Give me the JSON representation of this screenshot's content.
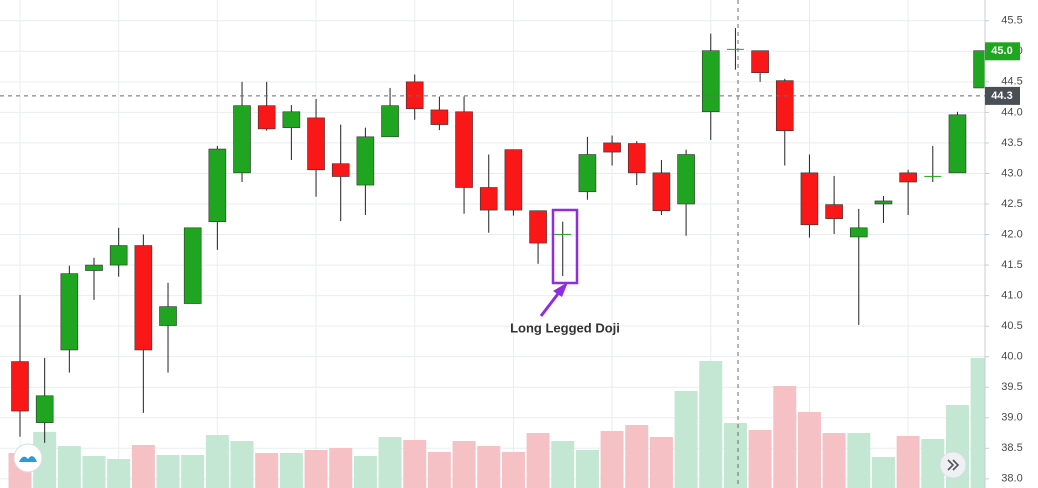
{
  "chart_data": {
    "type": "candlestick",
    "open": [
      39.92,
      38.92,
      40.11,
      41.41,
      41.5,
      41.82,
      40.51,
      40.87,
      42.21,
      43.01,
      44.11,
      43.75,
      43.91,
      43.16,
      42.81,
      43.6,
      44.5,
      44.04,
      44.01,
      42.77,
      43.39,
      42.39,
      42.01,
      42.7,
      43.5,
      43.49,
      43.01,
      42.5,
      44.01,
      45.04,
      45.01,
      44.52,
      43.01,
      42.49,
      41.96,
      42.5,
      43.01,
      42.96,
      43.01,
      44.4
    ],
    "high": [
      41.01,
      39.98,
      41.49,
      41.62,
      42.11,
      42.0,
      41.21,
      42.11,
      43.45,
      44.5,
      44.5,
      44.12,
      44.22,
      43.8,
      43.75,
      44.4,
      44.62,
      44.26,
      44.26,
      43.31,
      43.39,
      42.39,
      42.21,
      43.6,
      43.62,
      43.53,
      43.22,
      43.39,
      45.29,
      45.38,
      45.01,
      44.55,
      43.31,
      42.96,
      42.42,
      42.63,
      43.06,
      43.45,
      44.01,
      45.01
    ],
    "low": [
      38.69,
      38.59,
      39.74,
      40.93,
      41.31,
      39.08,
      39.74,
      40.87,
      41.75,
      42.86,
      43.7,
      43.22,
      42.62,
      42.22,
      42.32,
      43.6,
      43.88,
      43.71,
      42.34,
      42.03,
      42.31,
      41.52,
      41.32,
      42.57,
      43.13,
      42.81,
      42.32,
      41.98,
      43.55,
      44.7,
      44.5,
      43.13,
      41.95,
      42.01,
      40.52,
      42.19,
      42.32,
      42.86,
      43.01,
      44.4
    ],
    "close": [
      39.11,
      39.36,
      41.36,
      41.5,
      41.82,
      40.11,
      40.82,
      42.11,
      43.4,
      44.11,
      43.73,
      44.01,
      43.06,
      42.95,
      43.6,
      44.11,
      44.06,
      43.8,
      42.77,
      42.4,
      42.4,
      41.86,
      42.01,
      43.31,
      43.35,
      43.01,
      42.39,
      43.31,
      45.01,
      45.04,
      44.65,
      43.7,
      42.16,
      42.26,
      42.11,
      42.55,
      42.86,
      42.96,
      43.96,
      45.01
    ],
    "volume": [
      35,
      56,
      42,
      32,
      29,
      43,
      33,
      33,
      53,
      47,
      35,
      35,
      38,
      40,
      32,
      51,
      48,
      36,
      47,
      42,
      36,
      55,
      47,
      38,
      57,
      63,
      51,
      97,
      127,
      65,
      58,
      102,
      76,
      55,
      55,
      31,
      52,
      49,
      83,
      130
    ],
    "up_color": "#1fa51f",
    "down_color": "#f91717",
    "up_volume_color": "#c3e7d3",
    "down_volume_color": "#f6c1c5",
    "ylim": [
      37.85,
      45.84
    ],
    "yticks": [
      {
        "value": 38.0,
        "label": "38.0"
      },
      38.5,
      {
        "value": 39.0,
        "label": "39.0"
      },
      39.5,
      {
        "value": 40.0,
        "label": "40.0"
      },
      40.5,
      {
        "value": 41.0,
        "label": "41.0"
      },
      41.5,
      {
        "value": 42.0,
        "label": "42.0"
      },
      42.5,
      {
        "value": 43.0,
        "label": "43.0"
      },
      43.5,
      {
        "value": 44.0,
        "label": "44.0"
      },
      44.5,
      {
        "value": 45.0,
        "label": "45.0"
      },
      45.5
    ],
    "grid": true,
    "last_price": {
      "value": 45.0,
      "label": "45.0"
    },
    "crosshair": {
      "value": 44.27,
      "label": "44.3"
    },
    "annotation": "Long Legged Doji"
  }
}
